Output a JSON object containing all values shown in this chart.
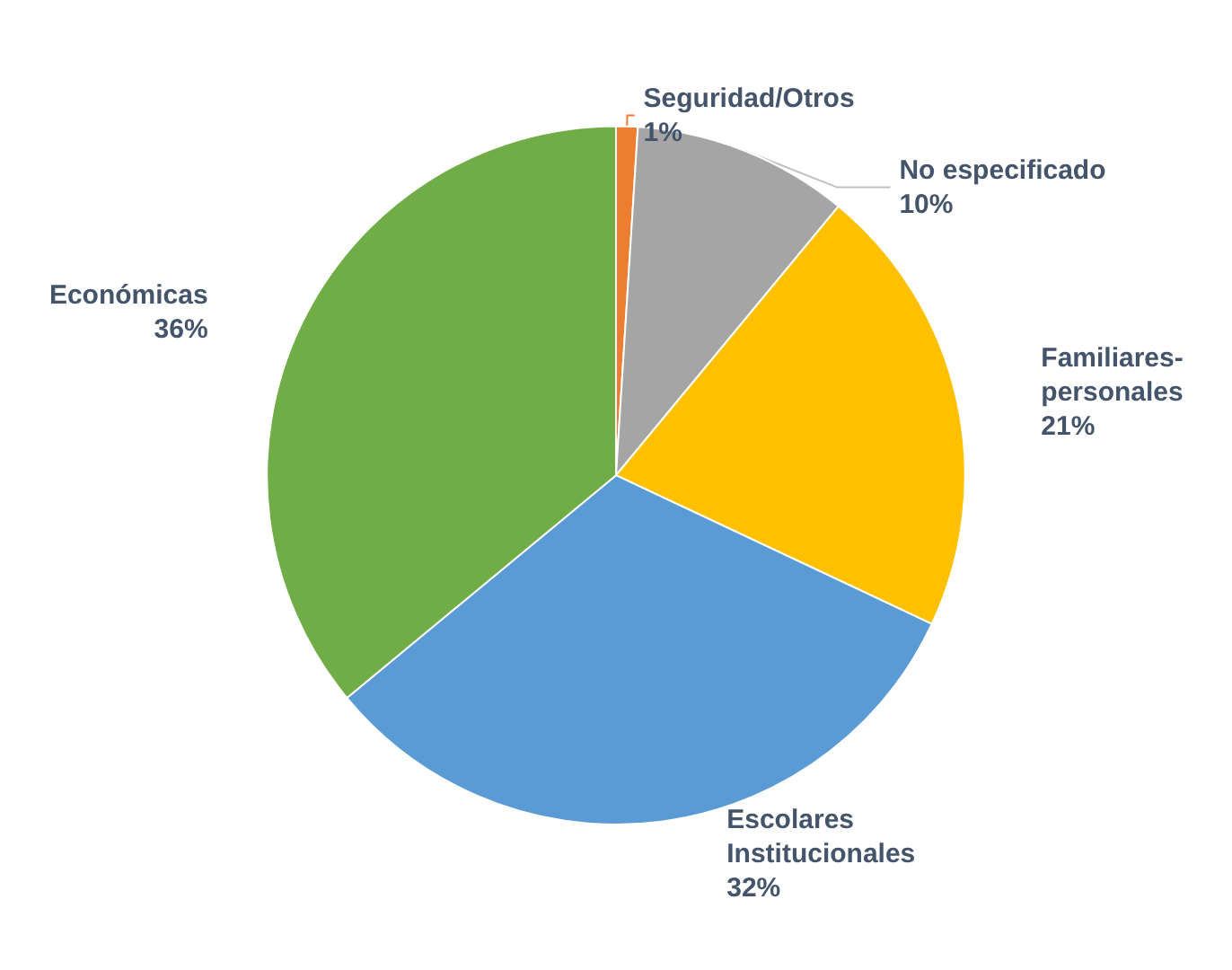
{
  "chart_data": {
    "type": "pie",
    "categories": [
      "Seguridad/Otros",
      "No especificado",
      "Familiares-personales",
      "Escolares Institucionales",
      "Económicas"
    ],
    "values": [
      1,
      10,
      21,
      32,
      36
    ],
    "value_labels": [
      "1%",
      "10%",
      "21%",
      "32%",
      "36%"
    ],
    "colors": [
      "#ed7d31",
      "#a5a5a5",
      "#ffc000",
      "#5b9bd5",
      "#70ad47"
    ],
    "legend": false
  }
}
